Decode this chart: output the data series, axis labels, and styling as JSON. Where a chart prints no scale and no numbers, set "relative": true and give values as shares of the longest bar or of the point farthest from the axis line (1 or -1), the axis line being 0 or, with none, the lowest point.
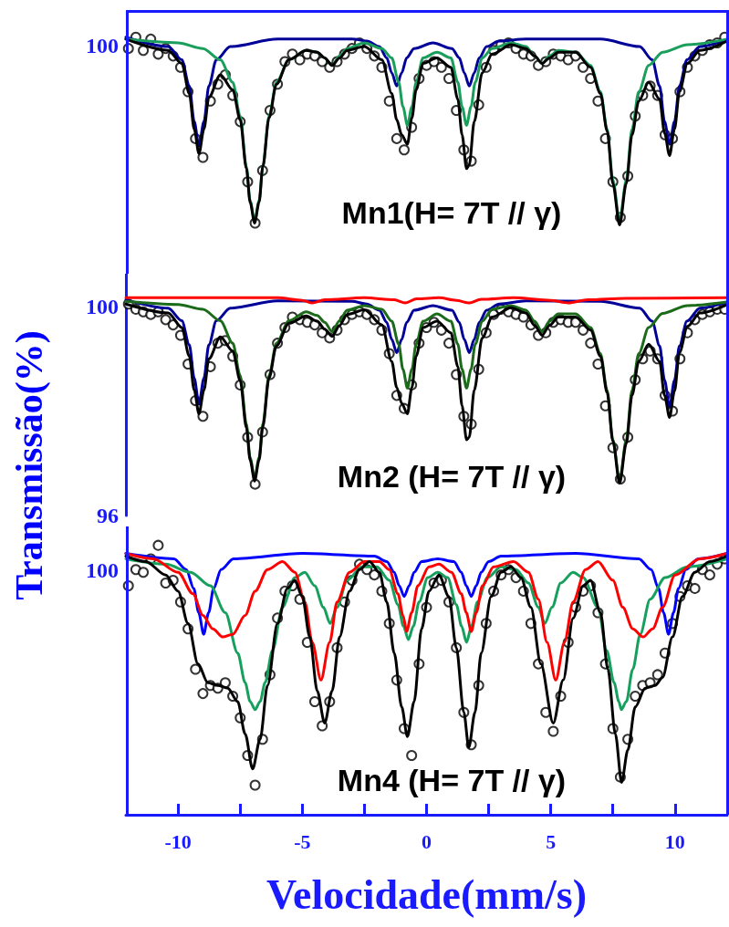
{
  "chart_data": [
    {
      "type": "line",
      "relative": true,
      "xlim": [
        -12.1,
        12.1
      ],
      "tick_labels": false,
      "annotations": [
        "100",
        "Mn1(H= 7T // γ)"
      ],
      "series": [
        {
          "type": "scatter",
          "marker": "circle",
          "color": "#000000",
          "x": [
            -12.0,
            -11.7,
            -11.4,
            -11.1,
            -10.8,
            -10.5,
            -10.2,
            -9.9,
            -9.6,
            -9.3,
            -9.0,
            -8.7,
            -8.4,
            -8.1,
            -7.8,
            -7.5,
            -7.2,
            -6.9,
            -6.6,
            -6.3,
            -6.0,
            -5.7,
            -5.4,
            -5.1,
            -4.8,
            -4.5,
            -4.2,
            -3.9,
            -3.6,
            -3.3,
            -3.0,
            -2.7,
            -2.4,
            -2.1,
            -1.8,
            -1.5,
            -1.2,
            -0.9,
            -0.6,
            -0.3,
            0.0,
            0.3,
            0.6,
            0.9,
            1.2,
            1.5,
            1.8,
            2.1,
            2.4,
            2.7,
            3.0,
            3.3,
            3.6,
            3.9,
            4.2,
            4.5,
            4.8,
            5.1,
            5.4,
            5.7,
            6.0,
            6.3,
            6.6,
            6.9,
            7.2,
            7.5,
            7.8,
            8.1,
            8.4,
            8.7,
            9.0,
            9.3,
            9.6,
            9.9,
            10.2,
            10.5,
            10.8,
            11.1,
            11.4,
            11.7,
            12.0
          ],
          "values": [
            0.94,
            1.0,
            0.93,
            0.99,
            0.91,
            0.94,
            0.9,
            0.84,
            0.71,
            0.46,
            0.36,
            0.66,
            0.75,
            0.8,
            0.69,
            0.55,
            0.23,
            0.01,
            0.29,
            0.61,
            0.75,
            0.87,
            0.91,
            0.88,
            0.91,
            0.9,
            0.87,
            0.84,
            0.87,
            0.91,
            0.94,
            0.97,
            0.94,
            0.9,
            0.84,
            0.66,
            0.46,
            0.4,
            0.52,
            0.78,
            0.85,
            0.87,
            0.84,
            0.78,
            0.61,
            0.4,
            0.34,
            0.64,
            0.84,
            0.93,
            0.96,
            0.97,
            0.94,
            0.91,
            0.9,
            0.85,
            0.87,
            0.91,
            0.9,
            0.88,
            0.9,
            0.84,
            0.78,
            0.66,
            0.46,
            0.23,
            0.04,
            0.26,
            0.58,
            0.69,
            0.74,
            0.69,
            0.48,
            0.46,
            0.71,
            0.84,
            0.9,
            0.93,
            0.96,
            0.97,
            1.0
          ]
        },
        {
          "color": "#000099",
          "x": [
            -12.1,
            -10.4,
            -9.85,
            -9.55,
            -9.35,
            -9.16,
            -8.96,
            -8.76,
            -8.46,
            -7.9,
            -6,
            -3,
            -2.4,
            -1.9,
            -1.6,
            -1.4,
            -1.2,
            -1.0,
            -0.8,
            -0.5,
            0.26,
            1.02,
            1.32,
            1.52,
            1.72,
            1.92,
            2.12,
            2.42,
            2.92,
            4,
            7,
            8.58,
            9.08,
            9.38,
            9.58,
            9.78,
            9.98,
            10.18,
            10.48,
            11,
            12.1
          ],
          "values": [
            1.0,
            0.95,
            0.88,
            0.74,
            0.55,
            0.42,
            0.55,
            0.74,
            0.88,
            0.95,
            0.99,
            0.99,
            0.98,
            0.95,
            0.89,
            0.81,
            0.74,
            0.81,
            0.89,
            0.94,
            0.97,
            0.94,
            0.89,
            0.81,
            0.74,
            0.81,
            0.89,
            0.95,
            0.98,
            0.99,
            0.99,
            0.95,
            0.88,
            0.74,
            0.55,
            0.43,
            0.55,
            0.74,
            0.88,
            0.95,
            0.99
          ]
        },
        {
          "color": "#1a9e5c",
          "x": [
            -12.1,
            -10,
            -9,
            -8.3,
            -7.8,
            -7.5,
            -7.25,
            -7.1,
            -6.92,
            -6.74,
            -6.59,
            -6.34,
            -6.04,
            -5.54,
            -4.84,
            -4.4,
            -4.1,
            -3.8,
            -3.5,
            -3.2,
            -2.5,
            -1.8,
            -1.4,
            -1.12,
            -0.95,
            -0.77,
            -0.59,
            -0.42,
            -0.14,
            0.42,
            0.98,
            1.26,
            1.43,
            1.61,
            1.79,
            1.96,
            2.24,
            2.64,
            3.4,
            4.0,
            4.35,
            4.65,
            4.95,
            5.3,
            6.0,
            6.6,
            7.0,
            7.27,
            7.5,
            7.77,
            8.04,
            8.27,
            8.54,
            8.94,
            9.5,
            10.5,
            12.1
          ],
          "values": [
            0.99,
            0.97,
            0.94,
            0.88,
            0.76,
            0.58,
            0.31,
            0.13,
            0.02,
            0.13,
            0.31,
            0.58,
            0.76,
            0.88,
            0.93,
            0.92,
            0.89,
            0.85,
            0.9,
            0.94,
            0.97,
            0.94,
            0.89,
            0.76,
            0.63,
            0.53,
            0.63,
            0.76,
            0.89,
            0.92,
            0.89,
            0.76,
            0.63,
            0.53,
            0.63,
            0.76,
            0.89,
            0.94,
            0.97,
            0.95,
            0.9,
            0.86,
            0.9,
            0.93,
            0.92,
            0.85,
            0.71,
            0.51,
            0.24,
            0.02,
            0.24,
            0.51,
            0.71,
            0.85,
            0.92,
            0.96,
            0.99
          ]
        },
        {
          "color": "#000000",
          "x": [
            -12.1,
            -10.4,
            -9.85,
            -9.55,
            -9.35,
            -9.16,
            -8.96,
            -8.76,
            -8.3,
            -7.8,
            -7.5,
            -7.25,
            -7.1,
            -6.92,
            -6.74,
            -6.59,
            -6.34,
            -6.04,
            -5.54,
            -4.84,
            -4.4,
            -4.1,
            -3.8,
            -3.5,
            -3.2,
            -2.5,
            -1.8,
            -1.4,
            -1.2,
            -1.0,
            -0.77,
            -0.59,
            -0.42,
            -0.14,
            0.42,
            0.98,
            1.26,
            1.43,
            1.61,
            1.72,
            1.92,
            2.24,
            2.64,
            3.4,
            4.0,
            4.35,
            4.65,
            4.95,
            5.3,
            6.0,
            6.6,
            7.0,
            7.27,
            7.5,
            7.77,
            8.04,
            8.27,
            8.54,
            8.94,
            9.38,
            9.58,
            9.78,
            9.98,
            10.18,
            10.5,
            11,
            12.1
          ],
          "values": [
            0.99,
            0.93,
            0.86,
            0.7,
            0.51,
            0.38,
            0.51,
            0.68,
            0.8,
            0.72,
            0.56,
            0.3,
            0.12,
            0.01,
            0.12,
            0.31,
            0.57,
            0.75,
            0.88,
            0.93,
            0.92,
            0.89,
            0.85,
            0.89,
            0.93,
            0.95,
            0.88,
            0.7,
            0.56,
            0.48,
            0.43,
            0.57,
            0.72,
            0.86,
            0.89,
            0.84,
            0.67,
            0.48,
            0.3,
            0.32,
            0.55,
            0.81,
            0.91,
            0.96,
            0.94,
            0.9,
            0.86,
            0.89,
            0.92,
            0.92,
            0.84,
            0.7,
            0.5,
            0.22,
            0,
            0.22,
            0.48,
            0.66,
            0.76,
            0.67,
            0.49,
            0.37,
            0.51,
            0.71,
            0.86,
            0.93,
            0.98
          ]
        }
      ]
    },
    {
      "type": "line",
      "xlim": [
        -12.1,
        12.1
      ],
      "ylim": [
        96,
        100.63
      ],
      "yticks": [
        96,
        100
      ],
      "tick_labels": "y",
      "ylabel": "Transmissão(%)",
      "annotations": [
        "Mn2 (H= 7T // γ)"
      ],
      "series": [
        {
          "type": "scatter",
          "marker": "circle",
          "color": "#000000",
          "x": [
            -12.0,
            -11.7,
            -11.4,
            -11.1,
            -10.8,
            -10.5,
            -10.2,
            -9.9,
            -9.6,
            -9.3,
            -9.0,
            -8.7,
            -8.4,
            -8.1,
            -7.8,
            -7.5,
            -7.2,
            -6.9,
            -6.6,
            -6.3,
            -6.0,
            -5.7,
            -5.4,
            -5.1,
            -4.8,
            -4.5,
            -4.2,
            -3.9,
            -3.6,
            -3.3,
            -3.0,
            -2.7,
            -2.4,
            -2.1,
            -1.8,
            -1.5,
            -1.2,
            -0.9,
            -0.6,
            -0.3,
            0.0,
            0.3,
            0.6,
            0.9,
            1.2,
            1.5,
            1.8,
            2.1,
            2.4,
            2.7,
            3.0,
            3.3,
            3.6,
            3.9,
            4.2,
            4.5,
            4.8,
            5.1,
            5.4,
            5.7,
            6.0,
            6.3,
            6.6,
            6.9,
            7.2,
            7.5,
            7.8,
            8.1,
            8.4,
            8.7,
            9.0,
            9.3,
            9.6,
            9.9,
            10.2,
            10.5,
            10.8,
            11.1,
            11.4,
            11.7,
            12.0
          ],
          "values": [
            100.05,
            99.95,
            99.9,
            99.85,
            99.9,
            99.75,
            99.65,
            99.45,
            98.9,
            98.2,
            97.9,
            98.85,
            99.3,
            99.35,
            99.05,
            98.5,
            97.5,
            96.6,
            97.6,
            98.7,
            99.3,
            99.6,
            99.8,
            99.75,
            99.7,
            99.65,
            99.5,
            99.4,
            99.55,
            99.75,
            99.85,
            99.9,
            99.85,
            99.75,
            99.55,
            99.1,
            98.3,
            98.05,
            98.5,
            99.3,
            99.6,
            99.7,
            99.55,
            99.3,
            98.7,
            97.9,
            97.75,
            98.8,
            99.5,
            99.85,
            99.95,
            99.9,
            99.85,
            99.8,
            99.65,
            99.45,
            99.5,
            99.7,
            99.75,
            99.7,
            99.7,
            99.55,
            99.3,
            98.9,
            98.1,
            97.3,
            96.7,
            97.5,
            98.6,
            99.0,
            99.15,
            99.0,
            98.3,
            98.0,
            99.0,
            99.5,
            99.75,
            99.85,
            99.9,
            99.95,
            99.95
          ]
        },
        {
          "color": "#000099",
          "x": [
            -12.1,
            -10.4,
            -9.85,
            -9.55,
            -9.35,
            -9.16,
            -8.96,
            -8.76,
            -8.46,
            -7.9,
            -6,
            -3,
            -2.4,
            -1.9,
            -1.6,
            -1.4,
            -1.2,
            -1.0,
            -0.8,
            -0.5,
            0.26,
            1.02,
            1.32,
            1.52,
            1.72,
            1.92,
            2.12,
            2.42,
            2.92,
            4,
            7,
            8.58,
            9.08,
            9.38,
            9.58,
            9.78,
            9.98,
            10.18,
            10.48,
            11,
            12.1
          ],
          "values": [
            100.13,
            99.97,
            99.73,
            99.27,
            98.63,
            98.13,
            98.63,
            99.27,
            99.73,
            99.97,
            100.11,
            100.1,
            100.05,
            99.93,
            99.7,
            99.37,
            99.12,
            99.37,
            99.7,
            99.93,
            100.02,
            99.93,
            99.7,
            99.37,
            99.12,
            99.37,
            99.7,
            99.93,
            100.05,
            100.11,
            100.1,
            99.97,
            99.72,
            99.25,
            98.59,
            98.08,
            98.59,
            99.25,
            99.72,
            99.97,
            100.09
          ]
        },
        {
          "color": "#1b6b1b",
          "x": [
            -12.1,
            -10,
            -9,
            -8.3,
            -7.8,
            -7.5,
            -7.25,
            -7.1,
            -6.92,
            -6.74,
            -6.59,
            -6.34,
            -6.04,
            -5.54,
            -4.84,
            -4.4,
            -4.1,
            -3.8,
            -3.5,
            -3.2,
            -2.5,
            -1.8,
            -1.4,
            -1.12,
            -0.95,
            -0.77,
            -0.59,
            -0.42,
            -0.14,
            0.42,
            0.98,
            1.26,
            1.43,
            1.61,
            1.79,
            1.96,
            2.24,
            2.64,
            3.4,
            4.0,
            4.35,
            4.65,
            4.95,
            5.3,
            6.0,
            6.6,
            7.0,
            7.27,
            7.5,
            7.77,
            8.04,
            8.27,
            8.54,
            8.94,
            9.5,
            10.5,
            12.1
          ],
          "values": [
            100.1,
            100.04,
            99.95,
            99.73,
            99.3,
            98.68,
            97.75,
            97.11,
            96.72,
            97.11,
            97.75,
            98.68,
            99.3,
            99.73,
            99.9,
            99.83,
            99.7,
            99.52,
            99.73,
            99.93,
            100.02,
            99.95,
            99.72,
            99.28,
            98.8,
            98.44,
            98.8,
            99.28,
            99.72,
            99.86,
            99.72,
            99.28,
            98.8,
            98.44,
            98.8,
            99.28,
            99.72,
            99.95,
            100.02,
            99.93,
            99.72,
            99.52,
            99.72,
            99.86,
            99.86,
            99.6,
            99.1,
            98.4,
            97.45,
            96.67,
            97.45,
            98.4,
            99.1,
            99.6,
            99.87,
            100.02,
            100.09
          ]
        },
        {
          "color": "#000000",
          "x": [
            -12.1,
            -10.4,
            -9.85,
            -9.55,
            -9.35,
            -9.16,
            -8.96,
            -8.76,
            -8.3,
            -7.8,
            -7.5,
            -7.25,
            -7.1,
            -6.92,
            -6.74,
            -6.59,
            -6.34,
            -6.04,
            -5.54,
            -4.84,
            -4.4,
            -4.1,
            -3.8,
            -3.5,
            -3.2,
            -2.5,
            -1.8,
            -1.4,
            -1.2,
            -1.0,
            -0.77,
            -0.59,
            -0.42,
            -0.14,
            0.42,
            0.98,
            1.26,
            1.43,
            1.61,
            1.72,
            1.92,
            2.24,
            2.64,
            3.4,
            4.0,
            4.35,
            4.65,
            4.95,
            5.3,
            6.0,
            6.6,
            7.0,
            7.27,
            7.5,
            7.77,
            8.04,
            8.27,
            8.54,
            8.94,
            9.38,
            9.58,
            9.78,
            9.98,
            10.18,
            10.5,
            11,
            12.1
          ],
          "values": [
            100.05,
            99.88,
            99.6,
            99.05,
            98.4,
            97.95,
            98.4,
            99.0,
            99.42,
            99.15,
            98.58,
            97.68,
            97.06,
            96.66,
            97.06,
            97.7,
            98.63,
            99.25,
            99.68,
            99.82,
            99.72,
            99.57,
            99.43,
            99.64,
            99.85,
            99.94,
            99.65,
            98.95,
            98.45,
            98.15,
            97.95,
            98.45,
            99.05,
            99.6,
            99.72,
            99.5,
            98.85,
            98.1,
            97.45,
            97.5,
            98.4,
            99.4,
            99.8,
            99.98,
            99.88,
            99.64,
            99.45,
            99.64,
            99.8,
            99.8,
            99.55,
            99.05,
            98.35,
            97.42,
            96.62,
            97.38,
            98.3,
            98.95,
            99.28,
            98.95,
            98.3,
            97.88,
            98.38,
            99.12,
            99.62,
            99.88,
            100.04
          ]
        },
        {
          "color": "#ff0000",
          "x": [
            -12.1,
            -6,
            -5,
            -4.6,
            -4.1,
            -2.5,
            -1.3,
            -0.85,
            -0.4,
            0.5,
            1.2,
            1.7,
            2.2,
            3.5,
            5.0,
            5.7,
            6.5,
            8,
            12.1
          ],
          "values": [
            100.17,
            100.17,
            100.12,
            100.07,
            100.13,
            100.17,
            100.13,
            100.07,
            100.15,
            100.17,
            100.12,
            100.07,
            100.14,
            100.17,
            100.12,
            100.07,
            100.13,
            100.16,
            100.17
          ]
        }
      ]
    },
    {
      "type": "line",
      "relative": true,
      "xlim": [
        -12.1,
        12.1
      ],
      "xticks": [
        -10,
        {
          "value": -7.5,
          "label": null
        },
        -5,
        {
          "value": -2.5,
          "label": null
        },
        0,
        {
          "value": 2.5,
          "label": null
        },
        5,
        {
          "value": 7.5,
          "label": null
        },
        10
      ],
      "tick_labels": "x",
      "xlabel": "Velocidade(mm/s)",
      "annotations": [
        "100",
        "Mn4 (H= 7T // γ)"
      ],
      "series": [
        {
          "type": "scatter",
          "marker": "circle",
          "color": "#000000",
          "x": [
            -12.0,
            -11.7,
            -11.4,
            -11.1,
            -10.8,
            -10.5,
            -10.2,
            -9.9,
            -9.6,
            -9.3,
            -9.0,
            -8.7,
            -8.4,
            -8.1,
            -7.8,
            -7.5,
            -7.2,
            -6.9,
            -6.6,
            -6.3,
            -6.0,
            -5.7,
            -5.4,
            -5.1,
            -4.8,
            -4.5,
            -4.2,
            -3.9,
            -3.6,
            -3.3,
            -3.0,
            -2.7,
            -2.4,
            -2.1,
            -1.8,
            -1.5,
            -1.2,
            -0.9,
            -0.6,
            -0.3,
            0.0,
            0.3,
            0.6,
            0.9,
            1.2,
            1.5,
            1.8,
            2.1,
            2.4,
            2.7,
            3.0,
            3.3,
            3.6,
            3.9,
            4.2,
            4.5,
            4.8,
            5.1,
            5.4,
            5.7,
            6.0,
            6.3,
            6.6,
            6.9,
            7.2,
            7.5,
            7.8,
            8.1,
            8.4,
            8.7,
            9.0,
            9.3,
            9.6,
            9.9,
            10.2,
            10.5,
            10.8,
            11.1,
            11.4,
            11.7,
            12.0
          ],
          "values": [
            0.85,
            0.91,
            0.9,
            0.95,
            1.0,
            0.86,
            0.87,
            0.79,
            0.69,
            0.54,
            0.45,
            0.48,
            0.47,
            0.49,
            0.44,
            0.36,
            0.22,
            0.11,
            0.28,
            0.52,
            0.73,
            0.83,
            0.85,
            0.8,
            0.64,
            0.42,
            0.33,
            0.42,
            0.62,
            0.79,
            0.87,
            0.93,
            0.91,
            0.89,
            0.83,
            0.71,
            0.5,
            0.32,
            0.22,
            0.56,
            0.77,
            0.86,
            0.87,
            0.79,
            0.62,
            0.38,
            0.26,
            0.48,
            0.71,
            0.83,
            0.89,
            0.91,
            0.88,
            0.83,
            0.71,
            0.56,
            0.38,
            0.31,
            0.44,
            0.64,
            0.77,
            0.83,
            0.85,
            0.75,
            0.56,
            0.32,
            0.14,
            0.28,
            0.44,
            0.48,
            0.49,
            0.52,
            0.6,
            0.71,
            0.81,
            0.85,
            0.84,
            0.91,
            0.89,
            0.93,
            0.95
          ]
        },
        {
          "color": "#0000ff",
          "x": [
            -12.1,
            -10.17,
            -9.67,
            -9.37,
            -9.17,
            -8.97,
            -8.77,
            -8.57,
            -8.27,
            -7.77,
            -5,
            -2.1,
            -1.6,
            -1.3,
            -1.1,
            -0.9,
            -0.7,
            -0.5,
            -0.2,
            0.45,
            1.1,
            1.4,
            1.6,
            1.8,
            2.0,
            2.2,
            2.5,
            3.0,
            6,
            8.54,
            9.04,
            9.34,
            9.54,
            9.74,
            9.94,
            10.14,
            10.44,
            10.94,
            12.1
          ],
          "values": [
            0.97,
            0.95,
            0.91,
            0.84,
            0.75,
            0.67,
            0.75,
            0.84,
            0.91,
            0.95,
            0.97,
            0.96,
            0.94,
            0.9,
            0.85,
            0.81,
            0.85,
            0.9,
            0.94,
            0.95,
            0.94,
            0.9,
            0.85,
            0.81,
            0.85,
            0.9,
            0.94,
            0.96,
            0.97,
            0.95,
            0.91,
            0.84,
            0.75,
            0.67,
            0.75,
            0.84,
            0.91,
            0.95,
            0.97
          ]
        },
        {
          "color": "#17a05d",
          "x": [
            -12.1,
            -10.5,
            -9.5,
            -8.7,
            -8.1,
            -7.6,
            -7.3,
            -7.1,
            -6.9,
            -6.7,
            -6.5,
            -6.2,
            -5.8,
            -5.3,
            -4.9,
            -4.5,
            -4.15,
            -3.88,
            -3.6,
            -3.2,
            -2.6,
            -2.0,
            -1.5,
            -1.15,
            -0.93,
            -0.73,
            -0.53,
            -0.3,
            0.05,
            0.45,
            0.85,
            1.2,
            1.41,
            1.61,
            1.81,
            2.05,
            2.45,
            3.0,
            3.6,
            4.1,
            4.5,
            4.76,
            5.05,
            5.4,
            5.9,
            6.3,
            6.9,
            7.25,
            7.55,
            7.74,
            7.84,
            8.04,
            8.3,
            8.6,
            9.0,
            9.6,
            10.5,
            12.1
          ],
          "values": [
            0.95,
            0.93,
            0.9,
            0.85,
            0.75,
            0.6,
            0.49,
            0.42,
            0.39,
            0.42,
            0.49,
            0.61,
            0.77,
            0.88,
            0.9,
            0.85,
            0.77,
            0.71,
            0.77,
            0.87,
            0.92,
            0.92,
            0.87,
            0.78,
            0.7,
            0.65,
            0.7,
            0.79,
            0.88,
            0.9,
            0.88,
            0.78,
            0.7,
            0.64,
            0.7,
            0.79,
            0.88,
            0.92,
            0.91,
            0.86,
            0.77,
            0.71,
            0.77,
            0.86,
            0.9,
            0.88,
            0.77,
            0.61,
            0.49,
            0.42,
            0.39,
            0.42,
            0.54,
            0.67,
            0.8,
            0.88,
            0.92,
            0.95
          ]
        },
        {
          "color": "#ff0000",
          "x": [
            -12.1,
            -11,
            -10,
            -9.4,
            -9.0,
            -8.6,
            -8.2,
            -7.8,
            -7.3,
            -6.9,
            -6.4,
            -5.8,
            -5.3,
            -4.9,
            -4.6,
            -4.25,
            -3.9,
            -3.6,
            -3.1,
            -2.5,
            -1.9,
            -1.5,
            -1.15,
            -0.95,
            -0.8,
            -0.6,
            -0.35,
            0.1,
            0.5,
            1.0,
            1.4,
            1.6,
            1.8,
            2.0,
            2.25,
            2.7,
            3.5,
            4.1,
            4.5,
            4.85,
            5.2,
            5.55,
            5.9,
            6.4,
            6.9,
            7.5,
            7.9,
            8.3,
            8.72,
            9.1,
            9.5,
            10.0,
            11,
            12.1
          ],
          "values": [
            0.97,
            0.95,
            0.9,
            0.82,
            0.74,
            0.69,
            0.66,
            0.67,
            0.74,
            0.83,
            0.91,
            0.94,
            0.9,
            0.79,
            0.64,
            0.5,
            0.64,
            0.79,
            0.9,
            0.94,
            0.94,
            0.91,
            0.82,
            0.74,
            0.68,
            0.75,
            0.85,
            0.92,
            0.93,
            0.9,
            0.82,
            0.75,
            0.68,
            0.75,
            0.85,
            0.92,
            0.94,
            0.9,
            0.8,
            0.64,
            0.5,
            0.64,
            0.79,
            0.91,
            0.94,
            0.87,
            0.77,
            0.69,
            0.66,
            0.69,
            0.77,
            0.89,
            0.95,
            0.97
          ]
        },
        {
          "color": "#000000",
          "x": [
            -12.1,
            -11.3,
            -10.5,
            -10.0,
            -9.6,
            -9.2,
            -8.8,
            -8.4,
            -8.0,
            -7.6,
            -7.3,
            -7.0,
            -6.7,
            -6.4,
            -6.0,
            -5.6,
            -5.3,
            -5.0,
            -4.7,
            -4.4,
            -4.1,
            -3.8,
            -3.5,
            -3.1,
            -2.7,
            -2.3,
            -1.9,
            -1.6,
            -1.3,
            -1.0,
            -0.77,
            -0.5,
            -0.2,
            0.1,
            0.5,
            0.9,
            1.2,
            1.5,
            1.7,
            1.95,
            2.2,
            2.6,
            3.0,
            3.4,
            3.8,
            4.2,
            4.6,
            5.1,
            5.5,
            5.9,
            6.3,
            6.6,
            7.0,
            7.3,
            7.6,
            7.85,
            8.1,
            8.4,
            8.8,
            9.2,
            9.5,
            9.9,
            10.3,
            10.8,
            11.4,
            12.1
          ],
          "values": [
            0.96,
            0.94,
            0.89,
            0.83,
            0.71,
            0.56,
            0.49,
            0.48,
            0.47,
            0.42,
            0.3,
            0.17,
            0.28,
            0.48,
            0.71,
            0.84,
            0.87,
            0.81,
            0.66,
            0.46,
            0.34,
            0.46,
            0.66,
            0.83,
            0.91,
            0.94,
            0.9,
            0.79,
            0.6,
            0.4,
            0.29,
            0.42,
            0.69,
            0.83,
            0.89,
            0.81,
            0.62,
            0.38,
            0.25,
            0.38,
            0.6,
            0.81,
            0.9,
            0.92,
            0.88,
            0.77,
            0.56,
            0.34,
            0.5,
            0.73,
            0.85,
            0.87,
            0.75,
            0.54,
            0.3,
            0.12,
            0.24,
            0.4,
            0.47,
            0.48,
            0.51,
            0.66,
            0.81,
            0.9,
            0.94,
            0.96
          ]
        }
      ]
    }
  ]
}
